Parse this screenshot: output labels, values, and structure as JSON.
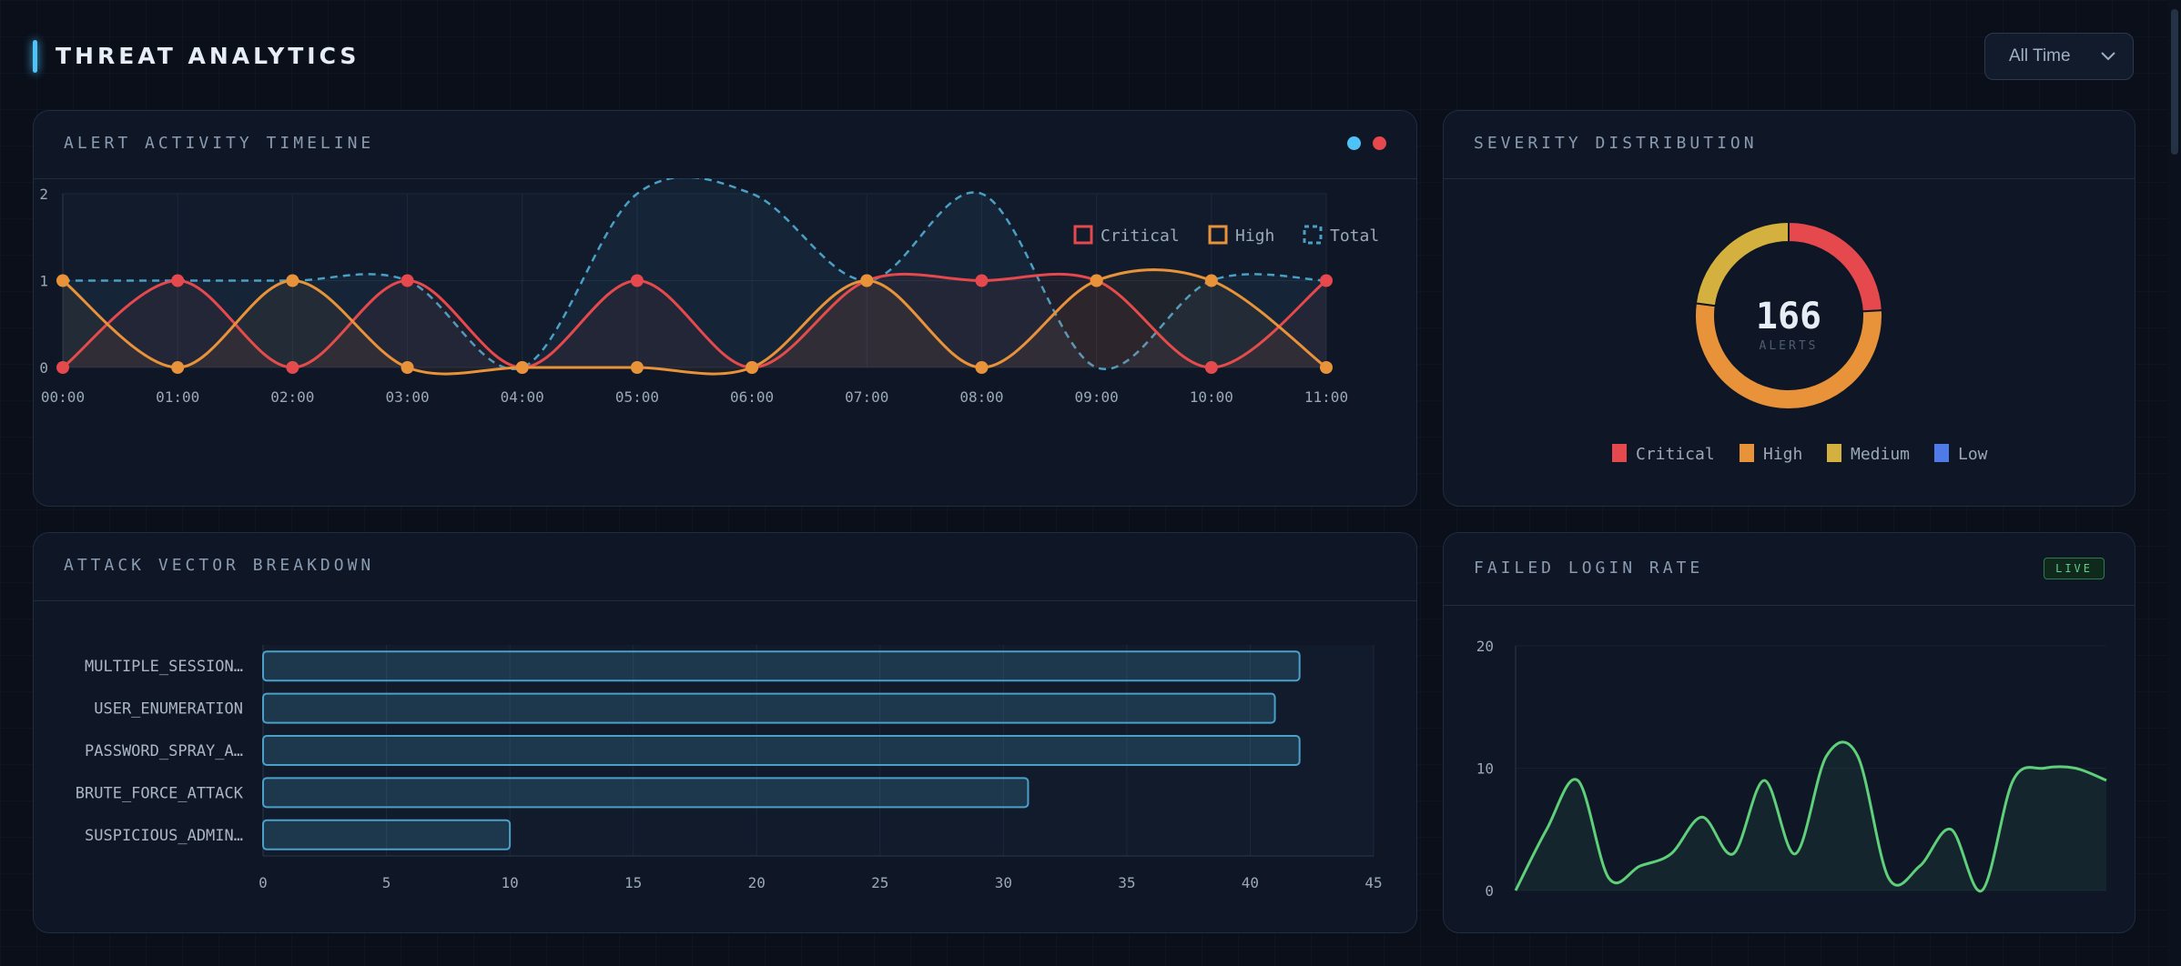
{
  "header": {
    "title": "THREAT ANALYTICS"
  },
  "time_filter": {
    "selected": "All Time",
    "icon": "chevron-down-icon"
  },
  "timeline_card": {
    "title": "ALERT ACTIVITY TIMELINE",
    "status_dots": [
      "#4fc3f7",
      "#e5484d"
    ]
  },
  "severity_card": {
    "title": "SEVERITY DISTRIBUTION",
    "center_value": "166",
    "center_label": "ALERTS"
  },
  "vector_card": {
    "title": "ATTACK VECTOR BREAKDOWN"
  },
  "login_card": {
    "title": "FAILED LOGIN RATE",
    "badge": "LIVE"
  },
  "colors": {
    "critical": "#e5484d",
    "high": "#e8923a",
    "total": "#4a9fc4",
    "medium": "#d4b13e",
    "low": "#4f7be8",
    "bar": "#4aa0c8",
    "login": "#5fd07a"
  },
  "chart_data": [
    {
      "type": "line",
      "x": [
        "00:00",
        "01:00",
        "02:00",
        "03:00",
        "04:00",
        "05:00",
        "06:00",
        "07:00",
        "08:00",
        "09:00",
        "10:00",
        "11:00"
      ],
      "series": [
        {
          "name": "Critical",
          "values": [
            0,
            1,
            0,
            1,
            0,
            1,
            0,
            1,
            1,
            1,
            0,
            1
          ]
        },
        {
          "name": "High",
          "values": [
            1,
            0,
            1,
            0,
            0,
            0,
            0,
            1,
            0,
            1,
            1,
            0
          ]
        },
        {
          "name": "Total",
          "values": [
            1,
            1,
            1,
            1,
            0,
            2,
            2,
            1,
            2,
            0,
            1,
            1
          ]
        }
      ],
      "ylim": [
        0,
        2
      ],
      "yticks": [
        0,
        1,
        2
      ],
      "legend": "top-right"
    },
    {
      "type": "pie",
      "categories": [
        "Critical",
        "High",
        "Medium",
        "Low"
      ],
      "values": [
        40,
        88,
        38,
        0
      ],
      "legend": "bottom"
    },
    {
      "type": "bar",
      "categories": [
        "MULTIPLE_SESSION…",
        "USER_ENUMERATION",
        "PASSWORD_SPRAY_A…",
        "BRUTE_FORCE_ATTACK",
        "SUSPICIOUS_ADMIN…"
      ],
      "values": [
        42,
        41,
        42,
        31,
        10
      ],
      "xlim": [
        0,
        45
      ],
      "xticks": [
        0,
        5,
        10,
        15,
        20,
        25,
        30,
        35,
        40,
        45
      ]
    },
    {
      "type": "area",
      "series": [
        {
          "values": [
            0,
            5,
            9,
            1,
            2,
            3,
            6,
            3,
            9,
            3,
            11,
            11,
            1,
            2,
            5,
            0,
            9,
            10,
            10,
            9
          ]
        }
      ],
      "ylim": [
        0,
        20
      ],
      "yticks": [
        0,
        10,
        20
      ]
    }
  ]
}
